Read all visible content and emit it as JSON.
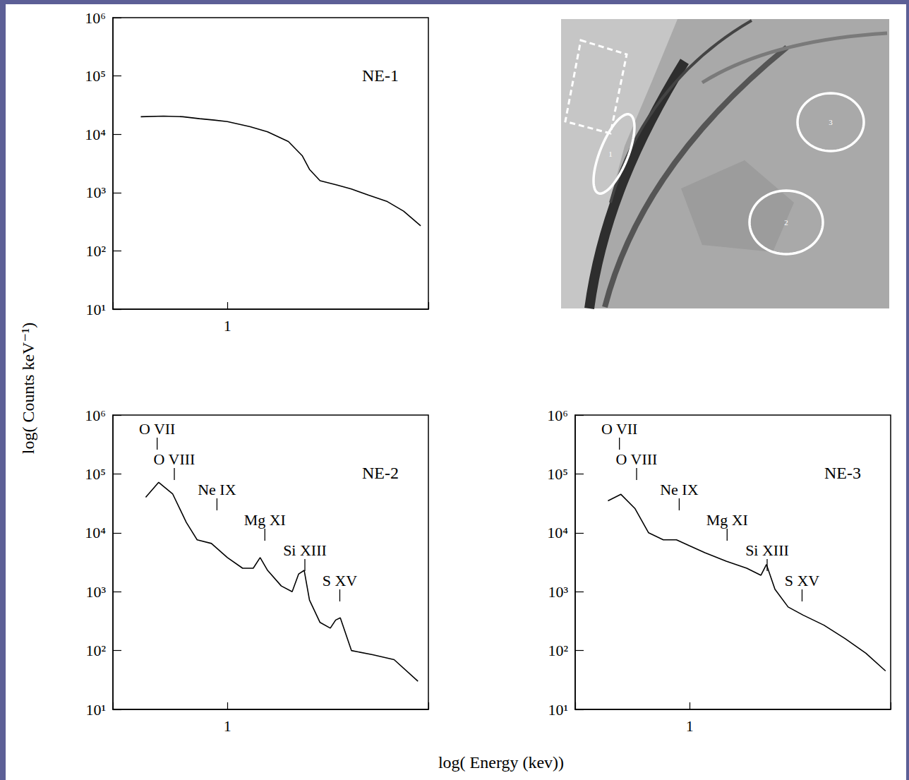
{
  "chart_data": [
    {
      "type": "line",
      "title": "NE-1",
      "color": "#000000",
      "line_style": "solid",
      "log": true,
      "grid": false,
      "x": [
        0.5,
        0.6,
        0.7,
        0.8,
        0.9,
        1.0,
        1.2,
        1.38,
        1.63,
        1.82,
        1.93,
        2.1,
        2.4,
        2.7,
        3.1,
        3.6,
        4.1,
        4.7
      ],
      "values": [
        20000,
        20500,
        20000,
        18500,
        17500,
        16500,
        13500,
        11000,
        7500,
        4300,
        2500,
        1600,
        1350,
        1150,
        900,
        700,
        480,
        270
      ],
      "xlim": [
        0.4,
        5
      ],
      "xticks": [
        1
      ],
      "ylim": [
        10,
        1000000
      ],
      "yticks": [
        {
          "value": 10,
          "label": "10¹"
        },
        {
          "value": 100,
          "label": "10²"
        },
        {
          "value": 1000,
          "label": "10³"
        },
        {
          "value": 10000,
          "label": "10⁴"
        },
        {
          "value": 100000,
          "label": "10⁵"
        },
        {
          "value": 1000000,
          "label": "10⁶"
        }
      ],
      "annotations": []
    },
    {
      "type": "line",
      "title": "NE-2",
      "color": "#000000",
      "line_style": "solid",
      "log": true,
      "grid": false,
      "x": [
        0.52,
        0.577,
        0.645,
        0.72,
        0.785,
        0.88,
        1.0,
        1.13,
        1.23,
        1.3,
        1.38,
        1.54,
        1.68,
        1.77,
        1.85,
        1.93,
        2.1,
        2.28,
        2.38,
        2.47,
        2.7,
        3.2,
        3.8,
        4.6
      ],
      "values": [
        40000,
        72000,
        46000,
        15000,
        7600,
        6600,
        3800,
        2500,
        2500,
        3800,
        2300,
        1250,
        1000,
        2000,
        2300,
        720,
        300,
        240,
        330,
        360,
        100,
        85,
        70,
        30
      ],
      "xlim": [
        0.4,
        5
      ],
      "xticks": [
        1
      ],
      "ylim": [
        10,
        1000000
      ],
      "yticks": [
        {
          "value": 10,
          "label": "10¹"
        },
        {
          "value": 100,
          "label": "10²"
        },
        {
          "value": 1000,
          "label": "10³"
        },
        {
          "value": 10000,
          "label": "10⁴"
        },
        {
          "value": 100000,
          "label": "10⁵"
        },
        {
          "value": 1000000,
          "label": "10⁶"
        }
      ],
      "annotations": [
        {
          "text": "O VII",
          "x": 0.57
        },
        {
          "text": "O VIII",
          "x": 0.654
        },
        {
          "text": "Ne IX",
          "x": 0.92
        },
        {
          "text": "Mg XI",
          "x": 1.35
        },
        {
          "text": "Si XIII",
          "x": 1.86
        },
        {
          "text": "S XV",
          "x": 2.46
        }
      ]
    },
    {
      "type": "line",
      "title": "NE-3",
      "color": "#000000",
      "line_style": "solid",
      "log": true,
      "grid": false,
      "x": [
        0.52,
        0.577,
        0.645,
        0.72,
        0.81,
        0.9,
        1.0,
        1.13,
        1.34,
        1.58,
        1.77,
        1.85,
        1.98,
        2.2,
        2.48,
        2.93,
        3.47,
        4.1,
        4.8
      ],
      "values": [
        35000,
        45000,
        26000,
        10000,
        7600,
        7600,
        6000,
        4600,
        3300,
        2500,
        1900,
        2900,
        1100,
        550,
        400,
        270,
        160,
        90,
        45
      ],
      "xlim": [
        0.4,
        5
      ],
      "xticks": [
        1
      ],
      "ylim": [
        10,
        1000000
      ],
      "yticks": [
        {
          "value": 10,
          "label": "10¹"
        },
        {
          "value": 100,
          "label": "10²"
        },
        {
          "value": 1000,
          "label": "10³"
        },
        {
          "value": 10000,
          "label": "10⁴"
        },
        {
          "value": 100000,
          "label": "10⁵"
        },
        {
          "value": 1000000,
          "label": "10⁶"
        }
      ],
      "annotations": [
        {
          "text": "O VII",
          "x": 0.57
        },
        {
          "text": "O VIII",
          "x": 0.654
        },
        {
          "text": "Ne IX",
          "x": 0.92
        },
        {
          "text": "Mg XI",
          "x": 1.35
        },
        {
          "text": "Si XIII",
          "x": 1.86
        },
        {
          "text": "S XV",
          "x": 2.46
        }
      ]
    }
  ],
  "xlabel": "log( Energy (kev))",
  "ylabel": "log( Counts keV⁻¹)",
  "image": {
    "region_labels": [
      "1",
      "2",
      "3"
    ]
  }
}
